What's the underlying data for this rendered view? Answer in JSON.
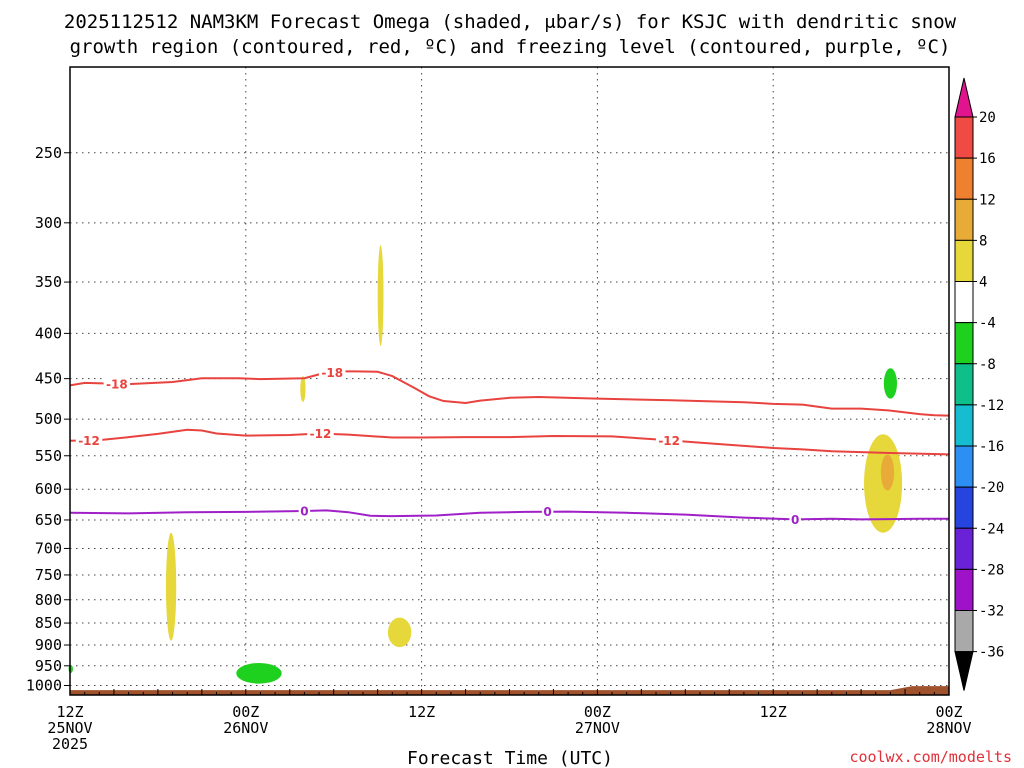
{
  "title": {
    "line1": "2025112512 NAM3KM Forecast Omega (shaded, μbar/s) for KSJC with dendritic snow",
    "line2": "growth region (contoured, red, ºC) and freezing level (contoured, purple, ºC)"
  },
  "credit": "coolwx.com/modelts",
  "chart_data": {
    "type": "time-height cross section",
    "xlabel": "Forecast Time (UTC)",
    "x_ticks": [
      {
        "hours": 0,
        "lines": [
          "12Z",
          "25NOV",
          "2025"
        ]
      },
      {
        "hours": 12,
        "lines": [
          "00Z",
          "26NOV"
        ]
      },
      {
        "hours": 24,
        "lines": [
          "12Z"
        ]
      },
      {
        "hours": 36,
        "lines": [
          "00Z",
          "27NOV"
        ]
      },
      {
        "hours": 48,
        "lines": [
          "12Z"
        ]
      },
      {
        "hours": 60,
        "lines": [
          "00Z",
          "28NOV"
        ]
      }
    ],
    "xlim": [
      0,
      60
    ],
    "y_scale": "log-pressure",
    "y_ticks": [
      250,
      300,
      350,
      400,
      450,
      500,
      550,
      600,
      650,
      700,
      750,
      800,
      850,
      900,
      950,
      1000
    ],
    "ylim": [
      1025,
      200
    ],
    "grid": true,
    "colorbar": {
      "labels": [
        "20",
        "16",
        "12",
        "8",
        "4",
        "-4",
        "-8",
        "-12",
        "-16",
        "-20",
        "-24",
        "-28",
        "-32",
        "-36"
      ],
      "top_arrow_color": "#e0158e",
      "segments": [
        {
          "color": "#ef4a43"
        },
        {
          "color": "#ef8030"
        },
        {
          "color": "#e8ab38"
        },
        {
          "color": "#e6d83b"
        },
        {
          "color": "#ffffff"
        },
        {
          "color": "#1ed11e"
        },
        {
          "color": "#0fbf8a"
        },
        {
          "color": "#16bcd0"
        },
        {
          "color": "#2d8ff2"
        },
        {
          "color": "#2545de"
        },
        {
          "color": "#6a22d6"
        },
        {
          "color": "#9e12c8"
        },
        {
          "color": "#a9a9a9"
        }
      ],
      "bottom_arrow_color": "#000000"
    },
    "contours": [
      {
        "label": "-18",
        "color": "#e8433e",
        "label_hours": [
          3.2,
          17.9
        ],
        "points": [
          [
            0,
            458
          ],
          [
            1,
            455
          ],
          [
            4,
            456.5
          ],
          [
            7,
            454
          ],
          [
            9,
            449.5
          ],
          [
            11.5,
            449.5
          ],
          [
            13,
            450.5
          ],
          [
            16,
            449.5
          ],
          [
            17,
            445
          ],
          [
            18.5,
            441.5
          ],
          [
            19.5,
            441.5
          ],
          [
            21,
            442
          ],
          [
            22,
            447
          ],
          [
            23.5,
            461
          ],
          [
            24.5,
            471
          ],
          [
            25.5,
            477
          ],
          [
            27,
            479.5
          ],
          [
            28,
            476.5
          ],
          [
            30,
            473
          ],
          [
            32,
            472
          ],
          [
            36,
            474
          ],
          [
            41,
            476
          ],
          [
            46,
            478.5
          ],
          [
            48,
            480.5
          ],
          [
            50,
            481.5
          ],
          [
            52,
            486.5
          ],
          [
            54,
            486.5
          ],
          [
            56,
            489
          ],
          [
            58,
            493.5
          ],
          [
            59,
            495
          ],
          [
            60,
            495.5
          ]
        ]
      },
      {
        "label": "-12",
        "color": "#e8433e",
        "label_hours": [
          1.3,
          17.1,
          40.9
        ],
        "points": [
          [
            0,
            529
          ],
          [
            2,
            528
          ],
          [
            4,
            524
          ],
          [
            6,
            519.5
          ],
          [
            8,
            514
          ],
          [
            9,
            515
          ],
          [
            10,
            519
          ],
          [
            12,
            522
          ],
          [
            15,
            521
          ],
          [
            17,
            519
          ],
          [
            19,
            520.5
          ],
          [
            22,
            524.5
          ],
          [
            24,
            524.5
          ],
          [
            27,
            524
          ],
          [
            30,
            524
          ],
          [
            33,
            522.5
          ],
          [
            37,
            523
          ],
          [
            40,
            527
          ],
          [
            44,
            533
          ],
          [
            48,
            539
          ],
          [
            50,
            541
          ],
          [
            52,
            543.5
          ],
          [
            56,
            546
          ],
          [
            60,
            548
          ]
        ]
      },
      {
        "label": "0",
        "color": "#a020c8",
        "label_hours": [
          16,
          32.6,
          49.5
        ],
        "points": [
          [
            0,
            638
          ],
          [
            4,
            639
          ],
          [
            8,
            637
          ],
          [
            12,
            636.5
          ],
          [
            16,
            635
          ],
          [
            17.5,
            634
          ],
          [
            19,
            637
          ],
          [
            20.5,
            643
          ],
          [
            22,
            643.5
          ],
          [
            25,
            642.5
          ],
          [
            28,
            638
          ],
          [
            31,
            636.5
          ],
          [
            34,
            636
          ],
          [
            38,
            638
          ],
          [
            42,
            641
          ],
          [
            46,
            646
          ],
          [
            49.5,
            649
          ],
          [
            52,
            648
          ],
          [
            54,
            649
          ],
          [
            58,
            648
          ],
          [
            60,
            648
          ]
        ]
      }
    ],
    "omega_shading": [
      {
        "band": "4 to 8",
        "color": "#e6d83b",
        "cx_hours": 6.9,
        "p_top": 672,
        "p_bottom": 890,
        "half_width_hours": 0.35
      },
      {
        "band": "4 to 8",
        "color": "#e6d83b",
        "cx_hours": 15.9,
        "p_top": 447,
        "p_bottom": 478,
        "half_width_hours": 0.18
      },
      {
        "band": "4 to 8",
        "color": "#e6d83b",
        "cx_hours": 21.2,
        "p_top": 318,
        "p_bottom": 413,
        "half_width_hours": 0.2
      },
      {
        "band": "4 to 8",
        "color": "#e6d83b",
        "cx_hours": 22.5,
        "p_top": 838,
        "p_bottom": 905,
        "half_width_hours": 0.8
      },
      {
        "band": "4 to 8",
        "color": "#e6d83b",
        "cx_hours": 55.5,
        "p_top": 520,
        "p_bottom": 672,
        "half_width_hours": 1.3
      },
      {
        "band": "8 to 12",
        "color": "#e8ab38",
        "cx_hours": 55.8,
        "p_top": 548,
        "p_bottom": 602,
        "half_width_hours": 0.45
      },
      {
        "band": "-4 to -8",
        "color": "#1ed11e",
        "cx_hours": 12.9,
        "p_top": 943,
        "p_bottom": 995,
        "half_width_hours": 1.55
      },
      {
        "band": "-4 to -8",
        "color": "#1ed11e",
        "cx_hours": 56.0,
        "p_top": 438,
        "p_bottom": 474,
        "half_width_hours": 0.45
      },
      {
        "band": "-4 to -8",
        "color": "#1ed11e",
        "cx_hours": 0.05,
        "p_top": 948,
        "p_bottom": 968,
        "half_width_hours": 0.15
      }
    ],
    "terrain": {
      "color": "#a0522d",
      "p_top": 1012
    }
  }
}
